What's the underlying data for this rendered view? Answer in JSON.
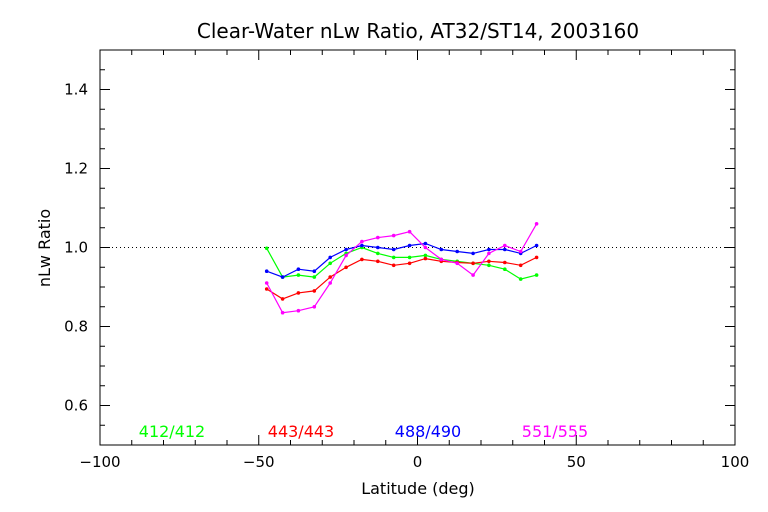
{
  "chart_data": {
    "type": "line",
    "title": "Clear-Water nLw Ratio, AT32/ST14, 2003160",
    "xlabel": "Latitude (deg)",
    "ylabel": "nLw Ratio",
    "xlim": [
      -100,
      100
    ],
    "ylim": [
      0.5,
      1.5
    ],
    "x_ticks": [
      -100,
      -50,
      0,
      50,
      100
    ],
    "x_tick_labels": [
      "−100",
      "−50",
      "0",
      "50",
      "100"
    ],
    "y_ticks": [
      0.6,
      0.8,
      1.0,
      1.2,
      1.4
    ],
    "y_tick_labels": [
      "0.6",
      "0.8",
      "1.0",
      "1.2",
      "1.4"
    ],
    "reference_line": 1.0,
    "legend_placement": "bottom",
    "series": [
      {
        "name": "412/412",
        "color": "#00ff00",
        "x": [
          -47.5,
          -42.5,
          -37.5,
          -32.5,
          -27.5,
          -22.5,
          -17.5,
          -12.5,
          -7.5,
          -2.5,
          2.5,
          7.5,
          12.5,
          17.5,
          22.5,
          27.5,
          32.5,
          37.5
        ],
        "y": [
          0.998,
          0.925,
          0.93,
          0.925,
          0.96,
          0.985,
          1.0,
          0.985,
          0.975,
          0.975,
          0.98,
          0.97,
          0.965,
          0.96,
          0.955,
          0.945,
          0.92,
          0.93
        ]
      },
      {
        "name": "443/443",
        "color": "#ff0000",
        "x": [
          -47.5,
          -42.5,
          -37.5,
          -32.5,
          -27.5,
          -22.5,
          -17.5,
          -12.5,
          -7.5,
          -2.5,
          2.5,
          7.5,
          12.5,
          17.5,
          22.5,
          27.5,
          32.5,
          37.5
        ],
        "y": [
          0.895,
          0.87,
          0.885,
          0.89,
          0.925,
          0.95,
          0.97,
          0.965,
          0.955,
          0.96,
          0.972,
          0.965,
          0.962,
          0.96,
          0.965,
          0.962,
          0.955,
          0.975
        ]
      },
      {
        "name": "488/490",
        "color": "#0000ff",
        "x": [
          -47.5,
          -42.5,
          -37.5,
          -32.5,
          -27.5,
          -22.5,
          -17.5,
          -12.5,
          -7.5,
          -2.5,
          2.5,
          7.5,
          12.5,
          17.5,
          22.5,
          27.5,
          32.5,
          37.5
        ],
        "y": [
          0.94,
          0.925,
          0.945,
          0.94,
          0.975,
          0.995,
          1.005,
          1.0,
          0.995,
          1.005,
          1.01,
          0.995,
          0.99,
          0.985,
          0.995,
          0.995,
          0.985,
          1.005
        ]
      },
      {
        "name": "551/555",
        "color": "#ff00ff",
        "x": [
          -47.5,
          -42.5,
          -37.5,
          -32.5,
          -27.5,
          -22.5,
          -17.5,
          -12.5,
          -7.5,
          -2.5,
          2.5,
          7.5,
          12.5,
          17.5,
          22.5,
          27.5,
          32.5,
          37.5
        ],
        "y": [
          0.91,
          0.835,
          0.84,
          0.85,
          0.91,
          0.98,
          1.015,
          1.025,
          1.03,
          1.04,
          1.0,
          0.97,
          0.96,
          0.93,
          0.985,
          1.005,
          0.99,
          1.06
        ]
      }
    ]
  }
}
